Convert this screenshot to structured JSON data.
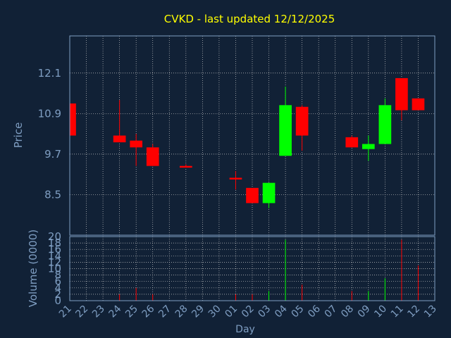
{
  "chart_data": {
    "type": "candlestick",
    "title": "CVKD - last updated 12/12/2025",
    "ylabel": "Price",
    "volume_ylabel": "Volume (0000)",
    "xlabel": "Day",
    "x_ticks": [
      "21",
      "22",
      "23",
      "24",
      "25",
      "26",
      "27",
      "28",
      "29",
      "30",
      "01",
      "02",
      "03",
      "04",
      "05",
      "06",
      "07",
      "08",
      "09",
      "10",
      "11",
      "12",
      "13"
    ],
    "price_ticks": [
      "8.5",
      "9.7",
      "10.9",
      "12.1"
    ],
    "volume_ticks": [
      "0",
      "2",
      "4",
      "6",
      "8",
      "10",
      "12",
      "14",
      "16",
      "18",
      "20"
    ],
    "price_ylim": [
      7.3,
      13.2
    ],
    "volume_ylim": [
      0,
      20
    ],
    "grid": true,
    "colors": {
      "background": "#112136",
      "title": "#ffff00",
      "axis_text": "#7f9ec2",
      "grid": "#c8c8c8",
      "up": "#00ff00",
      "down": "#ff0000",
      "flat": "#ff0000"
    },
    "candles": [
      {
        "day": "21",
        "open": 11.2,
        "high": 11.25,
        "low": 10.2,
        "close": 10.25
      },
      {
        "day": "24",
        "open": 10.25,
        "high": 11.3,
        "low": 10.05,
        "close": 10.05
      },
      {
        "day": "25",
        "open": 10.1,
        "high": 10.3,
        "low": 9.35,
        "close": 9.9
      },
      {
        "day": "26",
        "open": 9.9,
        "high": 10.0,
        "low": 9.35,
        "close": 9.35
      },
      {
        "day": "28",
        "open": 9.35,
        "high": 9.4,
        "low": 9.3,
        "close": 9.3
      },
      {
        "day": "01",
        "open": 9.0,
        "high": 9.2,
        "low": 8.65,
        "close": 8.95
      },
      {
        "day": "02",
        "open": 8.7,
        "high": 8.7,
        "low": 8.25,
        "close": 8.25
      },
      {
        "day": "03",
        "open": 8.25,
        "high": 8.85,
        "low": 8.1,
        "close": 8.85
      },
      {
        "day": "04",
        "open": 9.65,
        "high": 11.7,
        "low": 9.65,
        "close": 11.15
      },
      {
        "day": "05",
        "open": 11.1,
        "high": 11.15,
        "low": 9.8,
        "close": 10.25
      },
      {
        "day": "08",
        "open": 10.2,
        "high": 10.25,
        "low": 9.9,
        "close": 9.9
      },
      {
        "day": "09",
        "open": 9.85,
        "high": 10.25,
        "low": 9.5,
        "close": 10.0
      },
      {
        "day": "10",
        "open": 10.0,
        "high": 11.35,
        "low": 10.0,
        "close": 11.15
      },
      {
        "day": "11",
        "open": 11.95,
        "high": 11.95,
        "low": 10.7,
        "close": 11.0
      },
      {
        "day": "12",
        "open": 11.35,
        "high": 11.35,
        "low": 11.0,
        "close": 11.0
      }
    ],
    "volume": [
      {
        "day": "24",
        "value": 2,
        "direction": "down"
      },
      {
        "day": "25",
        "value": 4,
        "direction": "down"
      },
      {
        "day": "26",
        "value": 2,
        "direction": "down"
      },
      {
        "day": "01",
        "value": 2,
        "direction": "down"
      },
      {
        "day": "02",
        "value": 2,
        "direction": "down"
      },
      {
        "day": "03",
        "value": 3,
        "direction": "up"
      },
      {
        "day": "04",
        "value": 19,
        "direction": "up"
      },
      {
        "day": "05",
        "value": 5,
        "direction": "down"
      },
      {
        "day": "08",
        "value": 3,
        "direction": "down"
      },
      {
        "day": "09",
        "value": 3,
        "direction": "up"
      },
      {
        "day": "10",
        "value": 7,
        "direction": "up"
      },
      {
        "day": "11",
        "value": 19,
        "direction": "down"
      },
      {
        "day": "12",
        "value": 11,
        "direction": "down"
      }
    ]
  }
}
